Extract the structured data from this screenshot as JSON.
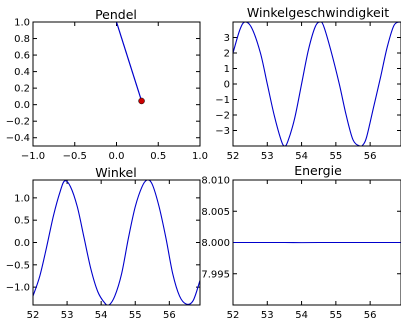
{
  "chart_data": [
    {
      "id": "pendel",
      "type": "scatter",
      "title": "Pendel",
      "xlim": [
        -1.0,
        1.0
      ],
      "ylim": [
        -0.5,
        1.0
      ],
      "xticks": [
        "−1.0",
        "−0.5",
        "0.0",
        "0.5",
        "1.0"
      ],
      "yticks": [
        "1.0",
        "0.8",
        "0.6",
        "0.4",
        "0.2",
        "0.0",
        "−0.2",
        "−0.4"
      ],
      "rod": {
        "x": [
          0.0,
          0.3
        ],
        "y": [
          1.0,
          0.045
        ]
      },
      "bob": {
        "x": 0.3,
        "y": 0.045
      },
      "colors": {
        "rod": "#0000cc",
        "bob": "#cc0000"
      }
    },
    {
      "id": "winkelgeschwindigkeit",
      "type": "line",
      "title": "Winkelgeschwindigkeit",
      "xlim": [
        52.0,
        56.9
      ],
      "ylim": [
        -4.0,
        4.0
      ],
      "xticks": [
        "52",
        "53",
        "54",
        "55",
        "56"
      ],
      "yticks": [
        "3",
        "2",
        "1",
        "0",
        "−1",
        "−2",
        "−3"
      ],
      "series": [
        {
          "x": [
            52.0,
            52.2,
            52.35,
            52.55,
            52.8,
            53.0,
            53.2,
            53.4,
            53.5,
            53.6,
            53.8,
            54.0,
            54.2,
            54.4,
            54.55,
            54.65,
            54.85,
            55.1,
            55.3,
            55.5,
            55.7,
            55.8,
            55.9,
            56.1,
            56.3,
            56.5,
            56.7,
            56.9
          ],
          "y": [
            2.0,
            3.5,
            4.0,
            3.6,
            2.0,
            0.0,
            -2.0,
            -3.6,
            -4.0,
            -3.7,
            -2.2,
            0.0,
            2.2,
            3.7,
            4.0,
            3.7,
            2.2,
            0.0,
            -2.0,
            -3.6,
            -4.0,
            -3.9,
            -3.4,
            -1.5,
            0.4,
            2.4,
            3.8,
            4.0
          ],
          "color": "#0000cc"
        }
      ]
    },
    {
      "id": "winkel",
      "type": "line",
      "title": "Winkel",
      "xlim": [
        52.0,
        56.9
      ],
      "ylim": [
        -1.4,
        1.4
      ],
      "xticks": [
        "52",
        "53",
        "54",
        "55",
        "56"
      ],
      "yticks": [
        "1.0",
        "0.5",
        "0.0",
        "−0.5",
        "−1.0"
      ],
      "series": [
        {
          "x": [
            52.0,
            52.2,
            52.4,
            52.6,
            52.8,
            52.93,
            53.1,
            53.3,
            53.5,
            53.7,
            53.9,
            54.1,
            54.23,
            54.4,
            54.6,
            54.8,
            55.0,
            55.2,
            55.35,
            55.5,
            55.7,
            55.9,
            56.1,
            56.3,
            56.5,
            56.7,
            56.9
          ],
          "y": [
            -1.2,
            -0.75,
            -0.1,
            0.6,
            1.15,
            1.38,
            1.25,
            0.8,
            0.1,
            -0.6,
            -1.1,
            -1.35,
            -1.4,
            -1.2,
            -0.7,
            0.1,
            0.8,
            1.25,
            1.4,
            1.3,
            0.8,
            0.1,
            -0.7,
            -1.2,
            -1.38,
            -1.3,
            -0.85
          ],
          "color": "#0000cc"
        }
      ]
    },
    {
      "id": "energie",
      "type": "line",
      "title": "Energie",
      "xlim": [
        52.0,
        56.9
      ],
      "ylim": [
        7.99,
        8.01
      ],
      "xticks": [
        "52",
        "53",
        "54",
        "55",
        "56"
      ],
      "yticks": [
        "8.010",
        "8.005",
        "8.000",
        "7.995"
      ],
      "series": [
        {
          "x": [
            52.0,
            52.5,
            53.0,
            53.5,
            54.0,
            54.5,
            55.0,
            55.5,
            56.0,
            56.5,
            56.9
          ],
          "y": [
            8.0,
            8.0,
            8.0,
            8.0,
            7.99998,
            8.0,
            8.0,
            8.0,
            8.0,
            8.0,
            8.0
          ],
          "color": "#0000cc"
        }
      ]
    }
  ]
}
